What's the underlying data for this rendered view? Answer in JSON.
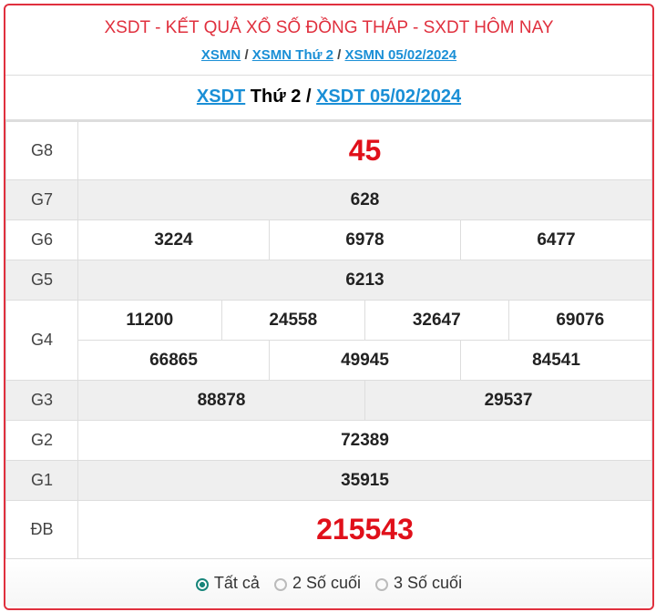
{
  "header": {
    "title": "XSDT - KẾT QUẢ XỔ SỐ ĐỒNG THÁP - SXDT HÔM NAY",
    "breadcrumb": [
      "XSMN",
      "XSMN Thứ 2",
      "XSMN 05/02/2024"
    ],
    "separator": "/"
  },
  "subtitle": {
    "link1": "XSDT",
    "text": " Thứ 2 / ",
    "link2": "XSDT 05/02/2024"
  },
  "prizes": {
    "g8": {
      "label": "G8",
      "values": [
        "45"
      ]
    },
    "g7": {
      "label": "G7",
      "values": [
        "628"
      ]
    },
    "g6": {
      "label": "G6",
      "values": [
        "3224",
        "6978",
        "6477"
      ]
    },
    "g5": {
      "label": "G5",
      "values": [
        "6213"
      ]
    },
    "g4": {
      "label": "G4",
      "values": [
        "11200",
        "24558",
        "32647",
        "69076",
        "66865",
        "49945",
        "84541"
      ]
    },
    "g3": {
      "label": "G3",
      "values": [
        "88878",
        "29537"
      ]
    },
    "g2": {
      "label": "G2",
      "values": [
        "72389"
      ]
    },
    "g1": {
      "label": "G1",
      "values": [
        "35915"
      ]
    },
    "db": {
      "label": "ĐB",
      "values": [
        "215543"
      ]
    }
  },
  "filter": {
    "options": [
      "Tất cả",
      "2 Số cuối",
      "3 Số cuối"
    ],
    "selected": "Tất cả"
  },
  "colors": {
    "accent": "#e0303e",
    "link": "#1a8fd6",
    "radio": "#17857a"
  }
}
